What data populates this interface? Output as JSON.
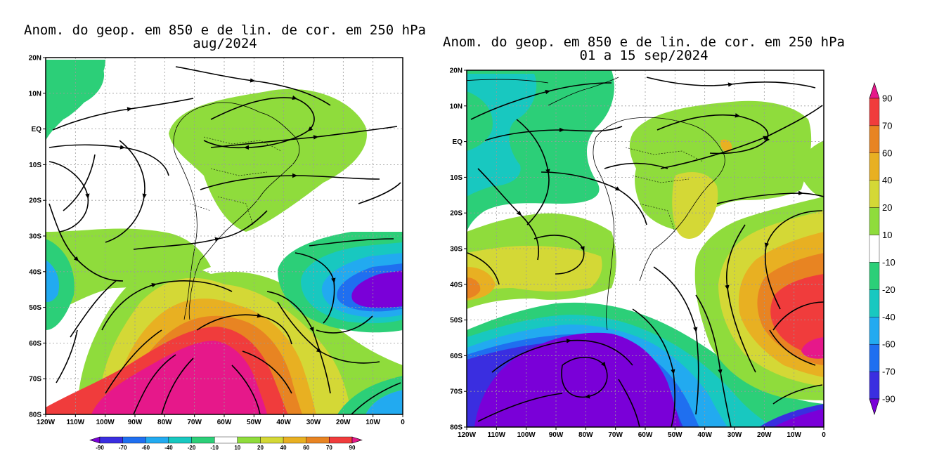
{
  "maps": [
    {
      "title_line1": "Anom. do geop. em 850 e de lin. de cor. em 250 hPa",
      "title_line2": "aug/2024",
      "lat_labels": [
        "20N",
        "10N",
        "EQ",
        "10S",
        "20S",
        "30S",
        "40S",
        "50S",
        "60S",
        "70S",
        "80S"
      ],
      "lon_labels": [
        "120W",
        "110W",
        "100W",
        "90W",
        "80W",
        "70W",
        "60W",
        "50W",
        "40W",
        "30W",
        "20W",
        "10W",
        "0"
      ]
    },
    {
      "title_line1": "Anom. do geop. em 850 e de lin. de cor. em 250 hPa",
      "title_line2": "01 a 15 sep/2024",
      "lat_labels": [
        "20N",
        "10N",
        "EQ",
        "10S",
        "20S",
        "30S",
        "40S",
        "50S",
        "60S",
        "70S",
        "80S"
      ],
      "lon_labels": [
        "120W",
        "110W",
        "100W",
        "90W",
        "80W",
        "70W",
        "60W",
        "50W",
        "40W",
        "30W",
        "20W",
        "10W",
        "0"
      ]
    }
  ],
  "colorbar": {
    "levels": [
      "-90",
      "-70",
      "-60",
      "-40",
      "-20",
      "-10",
      "10",
      "20",
      "40",
      "60",
      "70",
      "90"
    ],
    "colors": [
      "#7a00d8",
      "#3a2ee0",
      "#1f6ff0",
      "#22aaf0",
      "#18c8c0",
      "#2ccf78",
      "#ffffff",
      "#8fdc3c",
      "#d4d836",
      "#e8b022",
      "#e88422",
      "#f03c3c",
      "#e6188a"
    ]
  },
  "shading_colors": {
    "magenta": "#e6188a",
    "red": "#f03c3c",
    "orange": "#e88422",
    "goldenrod": "#e8b022",
    "yellow": "#d4d836",
    "lightgreen": "#8fdc3c",
    "green": "#2ccf78",
    "teal": "#18c8c0",
    "lightblue": "#22aaf0",
    "blue": "#1f6ff0",
    "indigo": "#3a2ee0",
    "purple": "#7a00d8"
  }
}
